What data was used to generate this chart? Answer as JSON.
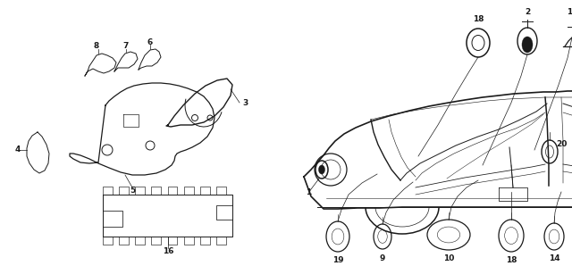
{
  "bg_color": "#ffffff",
  "lc": "#1a1a1a",
  "fig_width": 6.4,
  "fig_height": 2.98,
  "dpi": 100
}
